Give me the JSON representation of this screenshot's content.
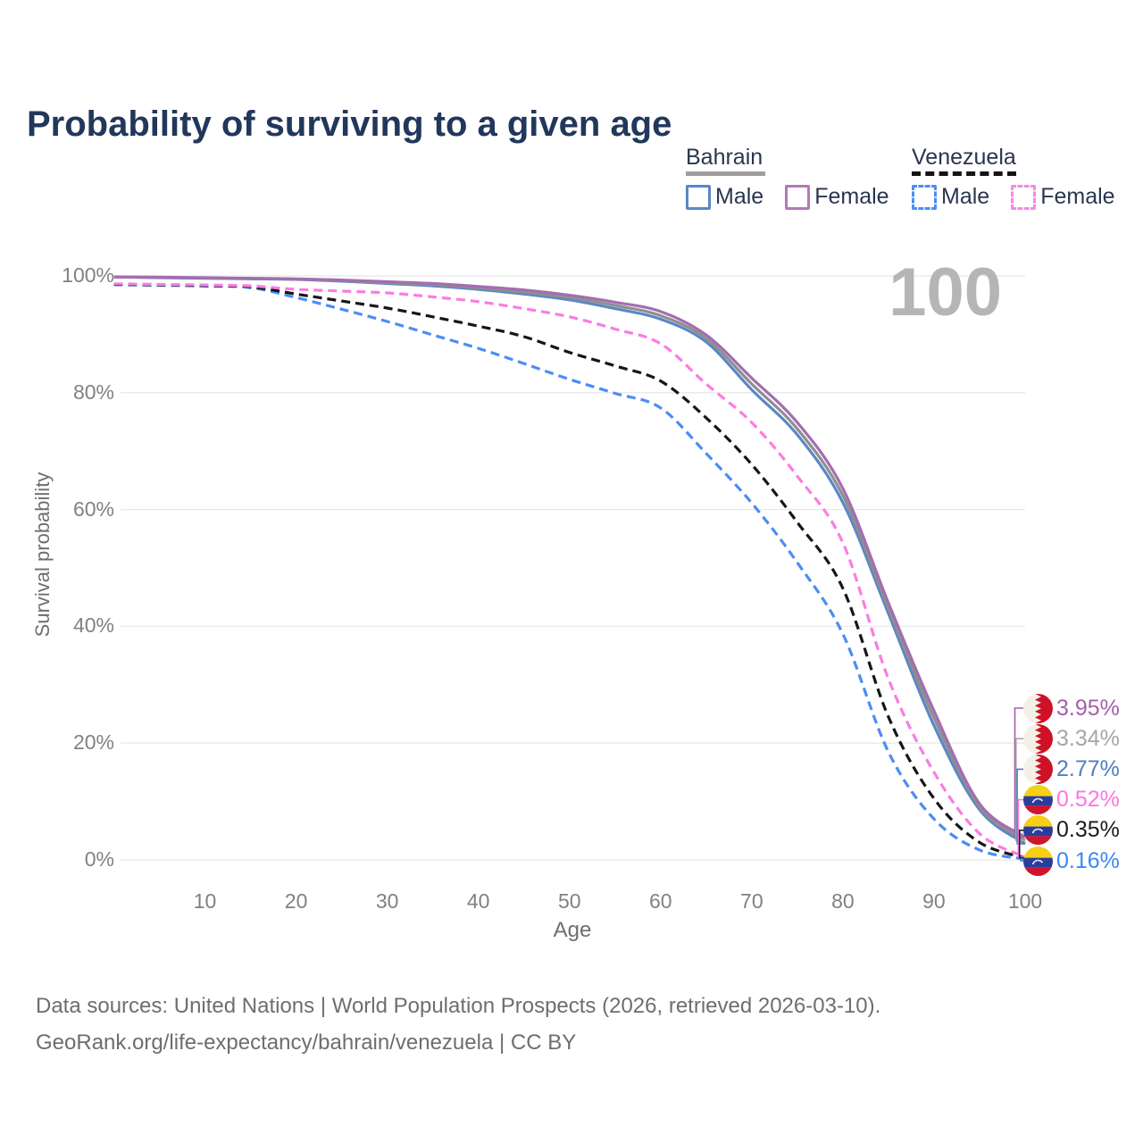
{
  "title": "Probability of surviving to a given age",
  "watermark_age": "100",
  "legend": {
    "groups": [
      {
        "country": "Bahrain",
        "line_style": "solid",
        "underline_color": "#9e9e9e",
        "items": [
          {
            "label": "Male",
            "color": "#5b87c5"
          },
          {
            "label": "Female",
            "color": "#b479b6"
          }
        ]
      },
      {
        "country": "Venezuela",
        "line_style": "dashed",
        "underline_color": "#141414",
        "items": [
          {
            "label": "Male",
            "color": "#4b8df5"
          },
          {
            "label": "Female",
            "color": "#fb86e6"
          }
        ]
      }
    ]
  },
  "chart_data": {
    "type": "line",
    "title": "Probability of surviving to a given age",
    "xlabel": "Age",
    "ylabel": "Survival probability",
    "xlim": [
      0,
      100
    ],
    "ylim": [
      0,
      100
    ],
    "grid": "horizontal",
    "x_ticks": [
      10,
      20,
      30,
      40,
      50,
      60,
      70,
      80,
      90,
      100
    ],
    "y_ticks": [
      0,
      20,
      40,
      60,
      80,
      100
    ],
    "y_tick_suffix": "%",
    "legend_position": "top-right",
    "x": [
      0,
      5,
      10,
      15,
      20,
      25,
      30,
      35,
      40,
      45,
      50,
      55,
      60,
      65,
      70,
      75,
      80,
      85,
      90,
      95,
      100
    ],
    "series": [
      {
        "id": "venezuela-male",
        "name": "Venezuela Male",
        "country": "Venezuela",
        "sex": "Male",
        "color": "#4b8df5",
        "dashed": true,
        "values": [
          98.5,
          98.4,
          98.25,
          98.0,
          96.3,
          94.3,
          92.2,
          89.9,
          87.6,
          85.0,
          82.3,
          79.9,
          77.4,
          69.6,
          61.1,
          50.9,
          38.7,
          18.5,
          7.0,
          1.7,
          0.16
        ]
      },
      {
        "id": "venezuela-both",
        "name": "Venezuela Both sexes",
        "country": "Venezuela",
        "sex": "Both",
        "color": "#161616",
        "dashed": true,
        "values": [
          98.57,
          98.47,
          98.35,
          98.15,
          96.9,
          95.7,
          94.5,
          93.0,
          91.4,
          89.6,
          86.9,
          84.6,
          82.0,
          75.7,
          67.7,
          57.8,
          46.5,
          24.5,
          10.5,
          3.0,
          0.35
        ]
      },
      {
        "id": "venezuela-female",
        "name": "Venezuela Female",
        "country": "Venezuela",
        "sex": "Female",
        "color": "#fb7ce2",
        "dashed": true,
        "values": [
          98.65,
          98.55,
          98.45,
          98.3,
          97.7,
          97.4,
          97.1,
          96.4,
          95.6,
          94.4,
          93.0,
          90.9,
          88.4,
          81.5,
          74.9,
          65.7,
          54.3,
          31.0,
          15.0,
          4.5,
          0.52
        ]
      },
      {
        "id": "bahrain-male",
        "name": "Bahrain Male",
        "country": "Bahrain",
        "sex": "Male",
        "color": "#5b87c5",
        "dashed": false,
        "values": [
          99.8,
          99.7,
          99.6,
          99.5,
          99.4,
          99.1,
          98.7,
          98.3,
          97.7,
          96.9,
          95.9,
          94.4,
          92.6,
          88.7,
          80.5,
          72.8,
          61.2,
          42.2,
          23.0,
          8.6,
          2.77
        ]
      },
      {
        "id": "bahrain-both",
        "name": "Bahrain Both sexes",
        "country": "Bahrain",
        "sex": "Both",
        "color": "#8f8f8f",
        "dashed": false,
        "values": [
          99.82,
          99.74,
          99.65,
          99.55,
          99.45,
          99.2,
          98.85,
          98.5,
          97.95,
          97.25,
          96.3,
          94.95,
          93.2,
          89.3,
          81.5,
          73.8,
          62.4,
          43.1,
          24.3,
          9.1,
          3.34
        ]
      },
      {
        "id": "bahrain-female",
        "name": "Bahrain Female",
        "country": "Bahrain",
        "sex": "Female",
        "color": "#a46db1",
        "dashed": false,
        "values": [
          99.85,
          99.78,
          99.7,
          99.6,
          99.5,
          99.3,
          99.0,
          98.7,
          98.2,
          97.6,
          96.7,
          95.5,
          93.9,
          89.9,
          82.5,
          74.9,
          63.6,
          44.0,
          25.5,
          9.6,
          3.95
        ]
      }
    ],
    "end_labels": [
      {
        "series": "bahrain-female",
        "text": "3.95%",
        "value": 3.95,
        "color": "#a35fa9",
        "flag": "bahrain"
      },
      {
        "series": "bahrain-both",
        "text": "3.34%",
        "value": 3.34,
        "color": "#a6a6a6",
        "flag": "bahrain"
      },
      {
        "series": "bahrain-male",
        "text": "2.77%",
        "value": 2.77,
        "color": "#4e7fbe",
        "flag": "bahrain"
      },
      {
        "series": "venezuela-female",
        "text": "0.52%",
        "value": 0.52,
        "color": "#ff74e1",
        "flag": "venezuela"
      },
      {
        "series": "venezuela-both",
        "text": "0.35%",
        "value": 0.35,
        "color": "#1c1c1c",
        "flag": "venezuela"
      },
      {
        "series": "venezuela-male",
        "text": "0.16%",
        "value": 0.16,
        "color": "#3c86f2",
        "flag": "venezuela"
      }
    ]
  },
  "flags": {
    "bahrain": {
      "white": "#f4f0e8",
      "red": "#ce1126"
    },
    "venezuela": {
      "yellow": "#f6cf17",
      "blue": "#2b3d9b",
      "red": "#cf142b",
      "stars": "#ffffff"
    }
  },
  "footer": {
    "line1": "Data sources: United Nations | World Population Prospects (2026, retrieved 2026-03-10).",
    "line2": "GeoRank.org/life-expectancy/bahrain/venezuela | CC BY"
  }
}
